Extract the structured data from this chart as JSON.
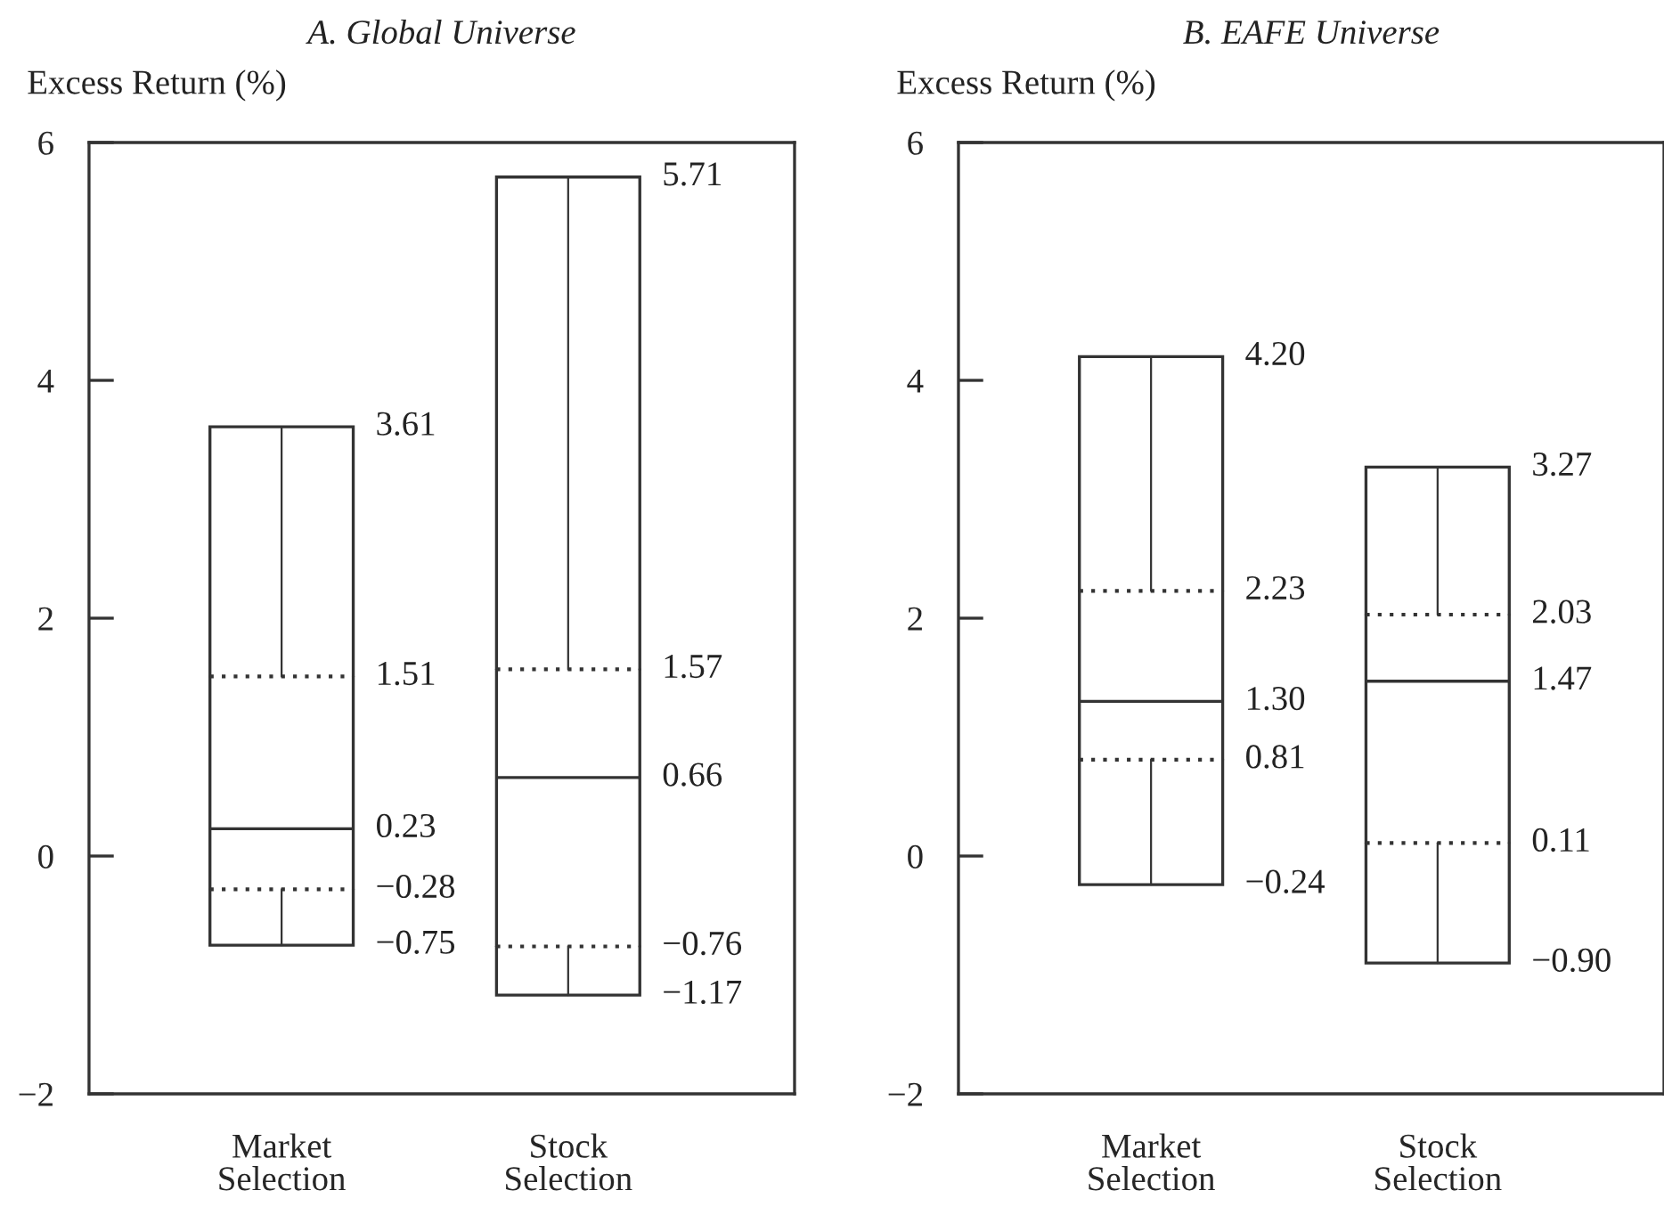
{
  "chart_data": [
    {
      "type": "box",
      "title": "A. Global Universe",
      "ylabel": "Excess Return (%)",
      "categories": [
        "Market\nSelection",
        "Stock\nSelection"
      ],
      "boxes": [
        {
          "low": -0.75,
          "q1": -0.28,
          "median": 0.23,
          "q3": 1.51,
          "high": 3.61
        },
        {
          "low": -1.17,
          "q1": -0.76,
          "median": 0.66,
          "q3": 1.57,
          "high": 5.71
        }
      ],
      "ylim": [
        -2,
        6
      ],
      "yticks": [
        {
          "value": -2,
          "label": "−2"
        },
        0,
        2,
        4,
        6
      ],
      "annotations": [
        {
          "text": "3.61",
          "x": "Market\nSelection",
          "y": 3.61
        },
        {
          "text": "1.51",
          "x": "Market\nSelection",
          "y": 1.51
        },
        {
          "text": "0.23",
          "x": "Market\nSelection",
          "y": 0.23
        },
        {
          "text": "−0.28",
          "x": "Market\nSelection",
          "y": -0.28
        },
        {
          "text": "−0.75",
          "x": "Market\nSelection",
          "y": -0.75
        },
        {
          "text": "5.71",
          "x": "Stock\nSelection",
          "y": 5.71
        },
        {
          "text": "1.57",
          "x": "Stock\nSelection",
          "y": 1.57
        },
        {
          "text": "0.66",
          "x": "Stock\nSelection",
          "y": 0.66
        },
        {
          "text": "−0.76",
          "x": "Stock\nSelection",
          "y": -0.76
        },
        {
          "text": "−1.17",
          "x": "Stock\nSelection",
          "y": -1.17
        }
      ]
    },
    {
      "type": "box",
      "title": "B. EAFE Universe",
      "ylabel": "Excess Return (%)",
      "categories": [
        "Market\nSelection",
        "Stock\nSelection"
      ],
      "boxes": [
        {
          "low": -0.24,
          "q1": 0.81,
          "median": 1.3,
          "q3": 2.23,
          "high": 4.2
        },
        {
          "low": -0.9,
          "q1": 0.11,
          "median": 1.47,
          "q3": 2.03,
          "high": 3.27
        }
      ],
      "ylim": [
        -2,
        6
      ],
      "yticks": [
        {
          "value": -2,
          "label": "−2"
        },
        0,
        2,
        4,
        6
      ],
      "annotations": [
        {
          "text": "4.20",
          "x": "Market\nSelection",
          "y": 4.2
        },
        {
          "text": "2.23",
          "x": "Market\nSelection",
          "y": 2.23
        },
        {
          "text": "1.30",
          "x": "Market\nSelection",
          "y": 1.3
        },
        {
          "text": "0.81",
          "x": "Market\nSelection",
          "y": 0.81
        },
        {
          "text": "−0.24",
          "x": "Market\nSelection",
          "y": -0.24
        },
        {
          "text": "3.27",
          "x": "Stock\nSelection",
          "y": 3.27
        },
        {
          "text": "2.03",
          "x": "Stock\nSelection",
          "y": 2.03
        },
        {
          "text": "1.47",
          "x": "Stock\nSelection",
          "y": 1.47
        },
        {
          "text": "0.11",
          "x": "Stock\nSelection",
          "y": 0.11
        },
        {
          "text": "−0.90",
          "x": "Stock\nSelection",
          "y": -0.9
        }
      ]
    }
  ]
}
